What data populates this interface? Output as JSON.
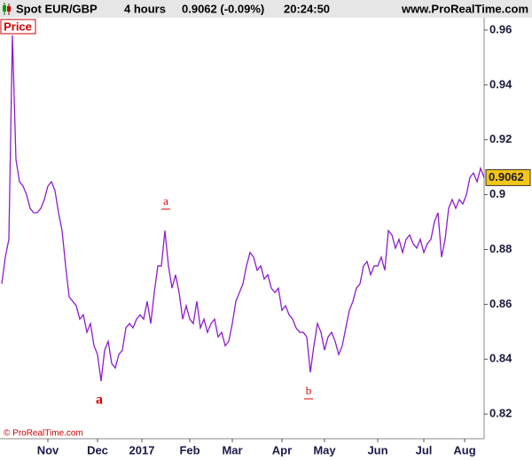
{
  "chart_data": {
    "type": "line",
    "header": {
      "symbol": "Spot EUR/GBP",
      "period": "4 hours",
      "quote": "0.9062 (-0.09%)",
      "time": "20:24:50",
      "site": "www.ProRealTime.com"
    },
    "copyright": "© ProRealTime.com",
    "last_price": 0.9062,
    "series": [
      {
        "name": "Price",
        "color": "#8e1ccc",
        "values": [
          0.8675,
          0.8772,
          0.8837,
          0.9581,
          0.9128,
          0.9047,
          0.9031,
          0.8999,
          0.895,
          0.8934,
          0.8934,
          0.895,
          0.8982,
          0.9031,
          0.9047,
          0.9015,
          0.8934,
          0.8869,
          0.874,
          0.8627,
          0.8611,
          0.8595,
          0.8546,
          0.8562,
          0.8498,
          0.853,
          0.8449,
          0.8417,
          0.832,
          0.8433,
          0.8465,
          0.8384,
          0.8368,
          0.8417,
          0.8433,
          0.8514,
          0.853,
          0.8514,
          0.8546,
          0.8562,
          0.8546,
          0.8611,
          0.853,
          0.8643,
          0.874,
          0.874,
          0.8869,
          0.874,
          0.8659,
          0.8708,
          0.8643,
          0.8546,
          0.8595,
          0.8546,
          0.853,
          0.8611,
          0.8514,
          0.8546,
          0.8498,
          0.853,
          0.8546,
          0.8481,
          0.8498,
          0.8449,
          0.8465,
          0.853,
          0.8611,
          0.8643,
          0.8675,
          0.874,
          0.8789,
          0.8772,
          0.8724,
          0.874,
          0.8692,
          0.8708,
          0.8659,
          0.8643,
          0.8659,
          0.8578,
          0.8595,
          0.8562,
          0.8546,
          0.8514,
          0.8498,
          0.8498,
          0.8481,
          0.8352,
          0.8449,
          0.853,
          0.8498,
          0.8433,
          0.8481,
          0.8498,
          0.8465,
          0.8417,
          0.8449,
          0.8514,
          0.8578,
          0.8611,
          0.8659,
          0.8675,
          0.874,
          0.8756,
          0.8708,
          0.874,
          0.874,
          0.8772,
          0.8724,
          0.8869,
          0.8853,
          0.8805,
          0.8837,
          0.8789,
          0.8837,
          0.8853,
          0.8821,
          0.8805,
          0.8837,
          0.8789,
          0.8821,
          0.8837,
          0.8902,
          0.8934,
          0.8772,
          0.8837,
          0.895,
          0.8982,
          0.895,
          0.8982,
          0.8966,
          0.8999,
          0.9063,
          0.9079,
          0.9047,
          0.9096,
          0.9062
        ]
      }
    ],
    "xlim": [
      0,
      136
    ],
    "xticks": [
      {
        "value": 13,
        "label": "Nov"
      },
      {
        "value": 27,
        "label": "Dec"
      },
      {
        "value": 39.5,
        "label": "2017"
      },
      {
        "value": 53,
        "label": "Feb"
      },
      {
        "value": 65,
        "label": "Mar"
      },
      {
        "value": 79,
        "label": "Apr"
      },
      {
        "value": 91,
        "label": "May"
      },
      {
        "value": 106,
        "label": "Jun"
      },
      {
        "value": 119,
        "label": "Jul"
      },
      {
        "value": 130.5,
        "label": "Aug"
      }
    ],
    "ylim": [
      0.811,
      0.9645
    ],
    "yticks": [
      0.82,
      0.84,
      0.86,
      0.88,
      0.9,
      0.92,
      0.94,
      0.96
    ],
    "annotations": [
      {
        "text": "a"
      },
      {
        "text": "a"
      },
      {
        "text": "b"
      }
    ]
  }
}
